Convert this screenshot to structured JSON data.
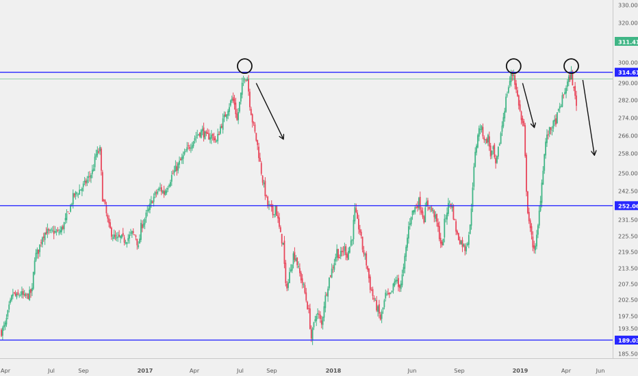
{
  "chart_data": {
    "type": "candlestick",
    "title": "",
    "xlabel": "",
    "ylabel": "",
    "ylim": [
      181.5,
      333
    ],
    "y_ticks": [
      "330.00",
      "320.00",
      "311.41",
      "300.00",
      "290.00",
      "282.00",
      "274.00",
      "266.00",
      "258.00",
      "250.00",
      "242.50",
      "237.50",
      "231.50",
      "225.50",
      "219.50",
      "213.50",
      "207.50",
      "202.50",
      "197.50",
      "193.50",
      "189.03",
      "185.50"
    ],
    "x_ticks": [
      "Apr",
      "Jul",
      "Sep",
      "2017",
      "Apr",
      "Jul",
      "Sep",
      "2018",
      "Jun",
      "Sep",
      "2019",
      "Apr",
      "Jun"
    ],
    "horizontal_lines": [
      {
        "label": "314.61",
        "value": 314.61,
        "color": "#2727ff"
      },
      {
        "label": "311.41",
        "value": 311.41,
        "color": "#26a65b"
      },
      {
        "label": "252.06",
        "value": 252.06,
        "color": "#2727ff"
      },
      {
        "label": "189.03",
        "value": 189.03,
        "color": "#2727ff"
      }
    ],
    "trend": [
      [
        0,
        193
      ],
      [
        3,
        196
      ],
      [
        6,
        204
      ],
      [
        9,
        211
      ],
      [
        12,
        209
      ],
      [
        15,
        211
      ],
      [
        18,
        209
      ],
      [
        21,
        210
      ],
      [
        24,
        212
      ],
      [
        26,
        228
      ],
      [
        29,
        231
      ],
      [
        32,
        238
      ],
      [
        35,
        240
      ],
      [
        38,
        239
      ],
      [
        41,
        240
      ],
      [
        44,
        239
      ],
      [
        47,
        241
      ],
      [
        50,
        245
      ],
      [
        53,
        250
      ],
      [
        56,
        256
      ],
      [
        59,
        258
      ],
      [
        62,
        260
      ],
      [
        65,
        262
      ],
      [
        68,
        265
      ],
      [
        71,
        268
      ],
      [
        74,
        276
      ],
      [
        77,
        278
      ],
      [
        79,
        256
      ],
      [
        81,
        251
      ],
      [
        84,
        242
      ],
      [
        87,
        238
      ],
      [
        90,
        236
      ],
      [
        93,
        237
      ],
      [
        96,
        236
      ],
      [
        99,
        237
      ],
      [
        102,
        239
      ],
      [
        105,
        238
      ],
      [
        107,
        232
      ],
      [
        109,
        242
      ],
      [
        112,
        246
      ],
      [
        115,
        250
      ],
      [
        118,
        255
      ],
      [
        121,
        258
      ],
      [
        124,
        260
      ],
      [
        127,
        258
      ],
      [
        130,
        262
      ],
      [
        133,
        266
      ],
      [
        136,
        269
      ],
      [
        139,
        272
      ],
      [
        142,
        275
      ],
      [
        145,
        278
      ],
      [
        148,
        281
      ],
      [
        151,
        284
      ],
      [
        154,
        286
      ],
      [
        157,
        287
      ],
      [
        160,
        284
      ],
      [
        163,
        285
      ],
      [
        166,
        284
      ],
      [
        168,
        282
      ],
      [
        171,
        289
      ],
      [
        174,
        293
      ],
      [
        177,
        298
      ],
      [
        180,
        302
      ],
      [
        182,
        300
      ],
      [
        184,
        292
      ],
      [
        186,
        300
      ],
      [
        188,
        308
      ],
      [
        190,
        313
      ],
      [
        192,
        312
      ],
      [
        194,
        300
      ],
      [
        196,
        292
      ],
      [
        198,
        286
      ],
      [
        200,
        280
      ],
      [
        202,
        272
      ],
      [
        204,
        264
      ],
      [
        206,
        258
      ],
      [
        208,
        252
      ],
      [
        210,
        251
      ],
      [
        212,
        248
      ],
      [
        214,
        252
      ],
      [
        216,
        245
      ],
      [
        218,
        238
      ],
      [
        220,
        234
      ],
      [
        222,
        214
      ],
      [
        224,
        216
      ],
      [
        226,
        224
      ],
      [
        228,
        229
      ],
      [
        230,
        228
      ],
      [
        232,
        222
      ],
      [
        234,
        218
      ],
      [
        236,
        214
      ],
      [
        238,
        208
      ],
      [
        240,
        202
      ],
      [
        242,
        190
      ],
      [
        244,
        196
      ],
      [
        246,
        202
      ],
      [
        248,
        200
      ],
      [
        250,
        196
      ],
      [
        252,
        206
      ],
      [
        254,
        212
      ],
      [
        256,
        218
      ],
      [
        258,
        222
      ],
      [
        260,
        226
      ],
      [
        262,
        231
      ],
      [
        264,
        228
      ],
      [
        266,
        230
      ],
      [
        268,
        232
      ],
      [
        270,
        229
      ],
      [
        272,
        233
      ],
      [
        274,
        238
      ],
      [
        276,
        250
      ],
      [
        278,
        244
      ],
      [
        280,
        240
      ],
      [
        282,
        232
      ],
      [
        284,
        228
      ],
      [
        286,
        222
      ],
      [
        288,
        214
      ],
      [
        290,
        210
      ],
      [
        292,
        206
      ],
      [
        294,
        203
      ],
      [
        296,
        199
      ],
      [
        298,
        204
      ],
      [
        300,
        210
      ],
      [
        302,
        209
      ],
      [
        304,
        210
      ],
      [
        306,
        214
      ],
      [
        308,
        218
      ],
      [
        310,
        214
      ],
      [
        312,
        216
      ],
      [
        314,
        222
      ],
      [
        316,
        232
      ],
      [
        318,
        242
      ],
      [
        320,
        248
      ],
      [
        322,
        250
      ],
      [
        324,
        252
      ],
      [
        326,
        254
      ],
      [
        328,
        250
      ],
      [
        330,
        246
      ],
      [
        332,
        253
      ],
      [
        334,
        252
      ],
      [
        336,
        250
      ],
      [
        338,
        248
      ],
      [
        340,
        244
      ],
      [
        342,
        238
      ],
      [
        344,
        232
      ],
      [
        346,
        244
      ],
      [
        348,
        250
      ],
      [
        350,
        254
      ],
      [
        352,
        251
      ],
      [
        354,
        244
      ],
      [
        356,
        238
      ],
      [
        358,
        236
      ],
      [
        360,
        234
      ],
      [
        362,
        232
      ],
      [
        364,
        236
      ],
      [
        366,
        242
      ],
      [
        368,
        262
      ],
      [
        370,
        276
      ],
      [
        372,
        286
      ],
      [
        374,
        289
      ],
      [
        376,
        286
      ],
      [
        378,
        282
      ],
      [
        380,
        284
      ],
      [
        382,
        276
      ],
      [
        384,
        278
      ],
      [
        386,
        270
      ],
      [
        388,
        278
      ],
      [
        390,
        286
      ],
      [
        392,
        294
      ],
      [
        394,
        302
      ],
      [
        396,
        308
      ],
      [
        398,
        313
      ],
      [
        400,
        314
      ],
      [
        402,
        306
      ],
      [
        404,
        300
      ],
      [
        406,
        292
      ],
      [
        408,
        288
      ],
      [
        409,
        274
      ],
      [
        410,
        260
      ],
      [
        411,
        250
      ],
      [
        413,
        240
      ],
      [
        415,
        234
      ],
      [
        417,
        232
      ],
      [
        419,
        242
      ],
      [
        421,
        256
      ],
      [
        423,
        270
      ],
      [
        425,
        282
      ],
      [
        427,
        286
      ],
      [
        429,
        288
      ],
      [
        431,
        290
      ],
      [
        433,
        292
      ],
      [
        435,
        296
      ],
      [
        437,
        300
      ],
      [
        439,
        304
      ],
      [
        441,
        308
      ],
      [
        443,
        311
      ],
      [
        445,
        314
      ],
      [
        447,
        306
      ],
      [
        449,
        300
      ]
    ],
    "markers": [
      {
        "type": "circle",
        "label": "peak-1"
      },
      {
        "type": "circle",
        "label": "peak-2"
      },
      {
        "type": "circle",
        "label": "peak-3"
      }
    ],
    "arrows": 4,
    "grid": false,
    "legend": "none"
  }
}
